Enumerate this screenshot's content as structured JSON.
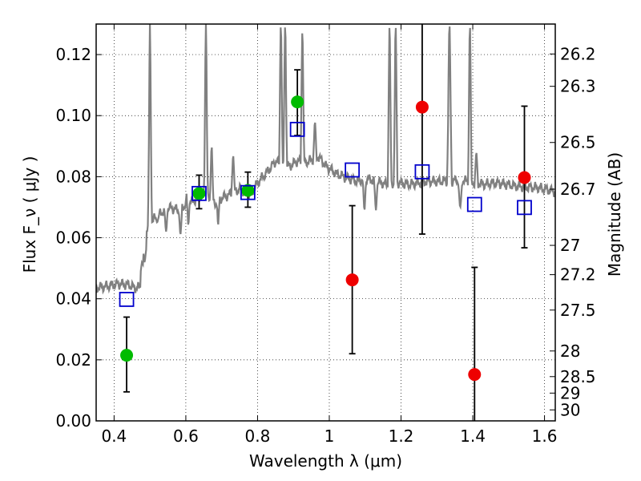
{
  "chart_data": {
    "type": "scatter",
    "xlabel": "Wavelength  λ (μm)",
    "ylabel": "Flux  F_ν  ( μJy )",
    "ylabel_right": "Magnitude (AB)",
    "xlim": [
      0.35,
      1.63
    ],
    "ylim": [
      0.0,
      0.13
    ],
    "grid": true,
    "x_ticks": [
      0.4,
      0.6,
      0.8,
      1.0,
      1.2,
      1.4,
      1.6
    ],
    "x_tick_labels": [
      "0.4",
      "0.6",
      "0.8",
      "1",
      "1.2",
      "1.4",
      "1.6"
    ],
    "y_ticks": [
      0.0,
      0.02,
      0.04,
      0.06,
      0.08,
      0.1,
      0.12
    ],
    "y_tick_labels": [
      "0.00",
      "0.02",
      "0.04",
      "0.06",
      "0.08",
      "0.10",
      "0.12"
    ],
    "right_ticks": [
      {
        "label": "26.2",
        "flux": 0.1202
      },
      {
        "label": "26.3",
        "flux": 0.1096
      },
      {
        "label": "26.5",
        "flux": 0.0912
      },
      {
        "label": "26.7",
        "flux": 0.0759
      },
      {
        "label": "27",
        "flux": 0.0575
      },
      {
        "label": "27.2",
        "flux": 0.0479
      },
      {
        "label": "27.5",
        "flux": 0.0363
      },
      {
        "label": "28",
        "flux": 0.0229
      },
      {
        "label": "28.5",
        "flux": 0.0145
      },
      {
        "label": "29",
        "flux": 0.0091
      },
      {
        "label": "30",
        "flux": 0.0036
      }
    ],
    "series": [
      {
        "marker": "circle",
        "color": "#00bb00",
        "points": [
          {
            "x": 0.435,
            "y": 0.0215,
            "lo": 0.0095,
            "hi": 0.034
          },
          {
            "x": 0.637,
            "y": 0.0745,
            "lo": 0.0695,
            "hi": 0.0805
          },
          {
            "x": 0.773,
            "y": 0.0755,
            "lo": 0.07,
            "hi": 0.0815
          },
          {
            "x": 0.911,
            "y": 0.1045,
            "lo": 0.0935,
            "hi": 0.115
          }
        ]
      },
      {
        "marker": "circle",
        "color": "#ee0000",
        "points": [
          {
            "x": 1.064,
            "y": 0.0462,
            "lo": 0.022,
            "hi": 0.0705
          },
          {
            "x": 1.259,
            "y": 0.1028,
            "lo": 0.0612,
            "hi": 0.13
          },
          {
            "x": 1.405,
            "y": 0.0152,
            "lo": 0.0,
            "hi": 0.0503
          },
          {
            "x": 1.544,
            "y": 0.0797,
            "lo": 0.0567,
            "hi": 0.1031
          }
        ]
      },
      {
        "marker": "open-square",
        "color": "#0000cc",
        "points": [
          {
            "x": 0.435,
            "y": 0.0398
          },
          {
            "x": 0.637,
            "y": 0.0745
          },
          {
            "x": 0.773,
            "y": 0.0748
          },
          {
            "x": 0.911,
            "y": 0.0955
          },
          {
            "x": 1.064,
            "y": 0.0822
          },
          {
            "x": 1.259,
            "y": 0.0816
          },
          {
            "x": 1.405,
            "y": 0.0709
          },
          {
            "x": 1.544,
            "y": 0.0699
          }
        ]
      }
    ],
    "spectrum": {
      "color": "#808080",
      "continuum": [
        [
          0.35,
          0.0435
        ],
        [
          0.38,
          0.0442
        ],
        [
          0.41,
          0.0448
        ],
        [
          0.44,
          0.0446
        ],
        [
          0.46,
          0.0435
        ],
        [
          0.475,
          0.044
        ],
        [
          0.49,
          0.063
        ],
        [
          0.51,
          0.066
        ],
        [
          0.53,
          0.068
        ],
        [
          0.55,
          0.07
        ],
        [
          0.58,
          0.069
        ],
        [
          0.6,
          0.071
        ],
        [
          0.62,
          0.072
        ],
        [
          0.65,
          0.074
        ],
        [
          0.68,
          0.071
        ],
        [
          0.7,
          0.073
        ],
        [
          0.72,
          0.074
        ],
        [
          0.75,
          0.076
        ],
        [
          0.78,
          0.074
        ],
        [
          0.8,
          0.078
        ],
        [
          0.83,
          0.082
        ],
        [
          0.85,
          0.085
        ],
        [
          0.87,
          0.084
        ],
        [
          0.89,
          0.0835
        ],
        [
          0.91,
          0.085
        ],
        [
          0.93,
          0.0845
        ],
        [
          0.95,
          0.0855
        ],
        [
          0.97,
          0.0865
        ],
        [
          0.99,
          0.0835
        ],
        [
          1.02,
          0.081
        ],
        [
          1.05,
          0.0795
        ],
        [
          1.08,
          0.0785
        ],
        [
          1.1,
          0.0795
        ],
        [
          1.13,
          0.0785
        ],
        [
          1.16,
          0.0775
        ],
        [
          1.19,
          0.078
        ],
        [
          1.22,
          0.0775
        ],
        [
          1.25,
          0.078
        ],
        [
          1.28,
          0.0785
        ],
        [
          1.31,
          0.0785
        ],
        [
          1.34,
          0.0785
        ],
        [
          1.37,
          0.079
        ],
        [
          1.4,
          0.078
        ],
        [
          1.43,
          0.0775
        ],
        [
          1.46,
          0.078
        ],
        [
          1.49,
          0.0775
        ],
        [
          1.52,
          0.077
        ],
        [
          1.55,
          0.0765
        ],
        [
          1.58,
          0.0765
        ],
        [
          1.6,
          0.076
        ],
        [
          1.63,
          0.075
        ]
      ],
      "features": [
        {
          "x": 0.478,
          "peak": 0.052,
          "w": 0.004
        },
        {
          "x": 0.486,
          "peak": 0.13,
          "w": 0.004
        },
        {
          "x": 0.5,
          "peak": 0.13,
          "w": 0.004
        },
        {
          "x": 0.656,
          "peak": 0.13,
          "w": 0.004
        },
        {
          "x": 0.672,
          "peak": 0.09,
          "w": 0.004
        },
        {
          "x": 0.605,
          "peak": 0.079,
          "w": 0.004
        },
        {
          "x": 0.732,
          "peak": 0.087,
          "w": 0.004
        },
        {
          "x": 0.865,
          "peak": 0.13,
          "w": 0.004
        },
        {
          "x": 0.877,
          "peak": 0.13,
          "w": 0.004
        },
        {
          "x": 0.925,
          "peak": 0.128,
          "w": 0.004
        },
        {
          "x": 0.96,
          "peak": 0.098,
          "w": 0.004
        },
        {
          "x": 1.168,
          "peak": 0.13,
          "w": 0.004
        },
        {
          "x": 1.185,
          "peak": 0.13,
          "w": 0.004
        },
        {
          "x": 1.335,
          "peak": 0.13,
          "w": 0.005
        },
        {
          "x": 1.392,
          "peak": 0.13,
          "w": 0.004
        },
        {
          "x": 1.41,
          "peak": 0.088,
          "w": 0.004
        }
      ],
      "dips": [
        {
          "x": 0.485,
          "depth": 0.052,
          "w": 0.004
        },
        {
          "x": 0.52,
          "depth": 0.065,
          "w": 0.004
        },
        {
          "x": 0.545,
          "depth": 0.062,
          "w": 0.004
        },
        {
          "x": 0.585,
          "depth": 0.061,
          "w": 0.004
        },
        {
          "x": 0.607,
          "depth": 0.064,
          "w": 0.003
        },
        {
          "x": 0.69,
          "depth": 0.064,
          "w": 0.003
        },
        {
          "x": 1.098,
          "depth": 0.069,
          "w": 0.004
        },
        {
          "x": 1.13,
          "depth": 0.069,
          "w": 0.004
        },
        {
          "x": 1.365,
          "depth": 0.07,
          "w": 0.005
        }
      ]
    }
  }
}
